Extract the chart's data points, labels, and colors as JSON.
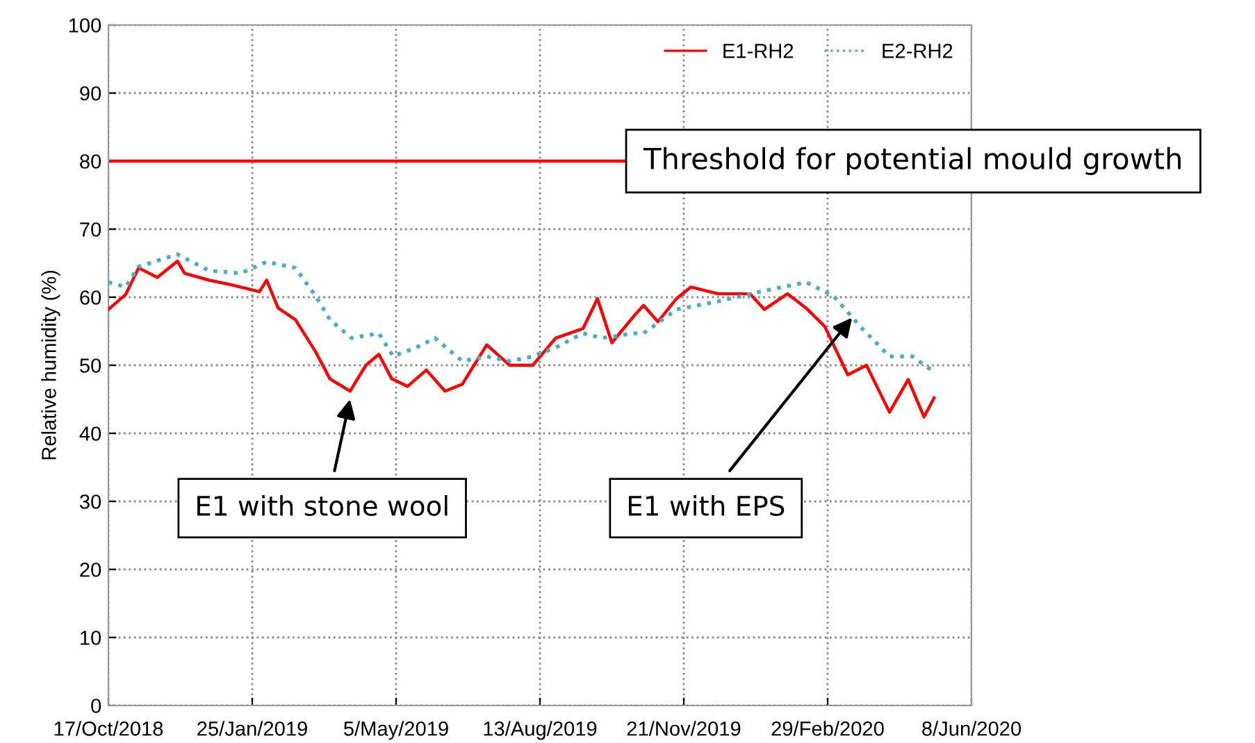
{
  "chart_data": {
    "type": "line",
    "ylabel": "Relative humidity (%)",
    "x": [
      "2018-10-17",
      "2018-10-29",
      "2018-11-07",
      "2018-11-20",
      "2018-12-04",
      "2018-12-09",
      "2018-12-26",
      "2019-01-11",
      "2019-01-30",
      "2019-02-04",
      "2019-02-12",
      "2019-02-24",
      "2019-03-10",
      "2019-03-20",
      "2019-04-03",
      "2019-04-14",
      "2019-04-23",
      "2019-05-02",
      "2019-05-13",
      "2019-05-26",
      "2019-06-08",
      "2019-06-20",
      "2019-07-07",
      "2019-07-23",
      "2019-08-08",
      "2019-08-24",
      "2019-09-12",
      "2019-09-22",
      "2019-10-02",
      "2019-10-18",
      "2019-10-24",
      "2019-11-03",
      "2019-11-16",
      "2019-11-26",
      "2019-12-15",
      "2020-01-06",
      "2020-01-16",
      "2020-02-01",
      "2020-02-14",
      "2020-02-27",
      "2020-03-14",
      "2020-03-27",
      "2020-04-12",
      "2020-04-25",
      "2020-05-06",
      "2020-05-13"
    ],
    "series": [
      {
        "name": "E1-RH2",
        "color": "#ff0000",
        "line_style": "solid",
        "values": [
          58.2,
          60.4,
          64.3,
          62.9,
          65.3,
          63.5,
          62.5,
          61.8,
          60.8,
          62.5,
          58.4,
          56.7,
          52,
          48,
          46.2,
          50,
          51.6,
          48,
          46.9,
          49.3,
          46.2,
          47.2,
          53,
          50,
          50,
          54,
          55.4,
          59.8,
          53.3,
          57.4,
          58.8,
          56.4,
          59.8,
          61.5,
          60.5,
          60.5,
          58.2,
          60.5,
          58.4,
          55.7,
          48.6,
          50,
          43.1,
          47.9,
          42.4,
          45.2
        ]
      },
      {
        "name": "E2-RH2",
        "color": "#4bacc6",
        "line_style": "dotted",
        "x": [
          "2018-10-17",
          "2018-10-29",
          "2018-11-07",
          "2018-12-04",
          "2018-12-26",
          "2019-01-17",
          "2019-02-04",
          "2019-02-24",
          "2019-03-10",
          "2019-03-20",
          "2019-04-04",
          "2019-04-23",
          "2019-05-03",
          "2019-05-19",
          "2019-06-01",
          "2019-06-20",
          "2019-07-07",
          "2019-07-23",
          "2019-08-08",
          "2019-08-24",
          "2019-09-12",
          "2019-09-25",
          "2019-10-18",
          "2019-10-24",
          "2019-11-16",
          "2019-12-15",
          "2020-01-13",
          "2020-02-14",
          "2020-03-04",
          "2020-03-24",
          "2020-04-12",
          "2020-04-28",
          "2020-05-11"
        ],
        "values": [
          62.2,
          61.5,
          64.5,
          66.3,
          63.9,
          63.5,
          65.2,
          64.3,
          60.2,
          56.7,
          54,
          54.7,
          51.3,
          52.6,
          54,
          50.6,
          51.3,
          50.6,
          51.3,
          52.6,
          54.7,
          54,
          54.7,
          54.7,
          58.2,
          59.4,
          60.8,
          62.2,
          60.2,
          55.4,
          51.3,
          51.3,
          49.3
        ]
      }
    ],
    "xlim": [
      "2018-10-17",
      "2020-06-08"
    ],
    "xticks": [
      {
        "value": "2018-10-17",
        "label": "17/Oct/2018"
      },
      {
        "value": "2019-01-25",
        "label": "25/Jan/2019"
      },
      {
        "value": "2019-05-05",
        "label": "5/May/2019"
      },
      {
        "value": "2019-08-13",
        "label": "13/Aug/2019"
      },
      {
        "value": "2019-11-21",
        "label": "21/Nov/2019"
      },
      {
        "value": "2020-02-29",
        "label": "29/Feb/2020"
      },
      {
        "value": "2020-06-08",
        "label": "8/Jun/2020"
      }
    ],
    "ylim": [
      0,
      100
    ],
    "yticks": [
      0,
      10,
      20,
      30,
      40,
      50,
      60,
      70,
      80,
      90,
      100
    ],
    "grid": true,
    "legend": "top right",
    "marker": "none",
    "ref_lines": [
      {
        "axis": "y",
        "value": 80,
        "label": "Threshold for potential mould growth",
        "color": "#ff0000",
        "line_style": "solid"
      }
    ],
    "annotations": [
      {
        "text": "E1 with stone wool",
        "x": "2019-04-03",
        "y": 45
      },
      {
        "text": "E1 with EPS",
        "x": "2020-03-17",
        "y": 57
      }
    ]
  }
}
